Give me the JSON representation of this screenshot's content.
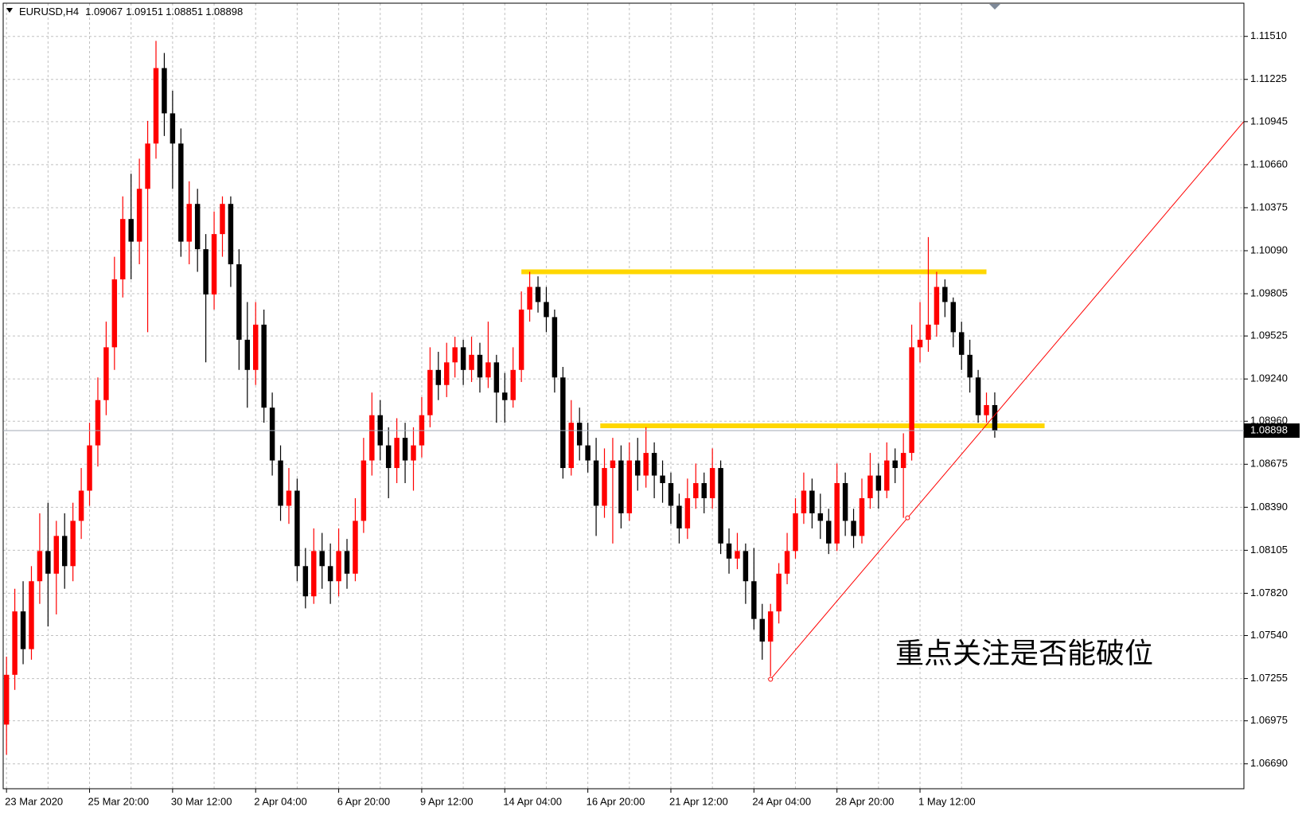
{
  "chart_data": {
    "type": "candlestick",
    "title": "EURUSD,H4",
    "up_color": "#ff0000",
    "down_color": "#000000",
    "grid": true,
    "ohlc": [
      [
        1.0695,
        1.074,
        1.0675,
        1.0728
      ],
      [
        1.0728,
        1.0785,
        1.0718,
        1.077
      ],
      [
        1.077,
        1.079,
        1.0735,
        1.0745
      ],
      [
        1.0745,
        1.08,
        1.0738,
        1.079
      ],
      [
        1.079,
        1.0835,
        1.0775,
        1.081
      ],
      [
        1.081,
        1.0842,
        1.076,
        1.0795
      ],
      [
        1.0795,
        1.083,
        1.0768,
        1.082
      ],
      [
        1.082,
        1.0835,
        1.0785,
        1.08
      ],
      [
        1.08,
        1.0842,
        1.079,
        1.083
      ],
      [
        1.083,
        1.0865,
        1.0818,
        1.085
      ],
      [
        1.085,
        1.0895,
        1.084,
        1.088
      ],
      [
        1.088,
        1.0925,
        1.0866,
        1.091
      ],
      [
        1.091,
        1.0962,
        1.09,
        1.0945
      ],
      [
        1.0945,
        1.1005,
        1.093,
        1.099
      ],
      [
        1.099,
        1.1045,
        1.0978,
        1.103
      ],
      [
        1.103,
        1.106,
        1.099,
        1.1015
      ],
      [
        1.1015,
        1.107,
        1.1,
        1.105
      ],
      [
        1.105,
        1.1095,
        1.0955,
        1.108
      ],
      [
        1.108,
        1.1148,
        1.107,
        1.113
      ],
      [
        1.113,
        1.114,
        1.1085,
        1.11
      ],
      [
        1.11,
        1.1115,
        1.105,
        1.108
      ],
      [
        1.108,
        1.109,
        1.1005,
        1.1015
      ],
      [
        1.1015,
        1.1055,
        1.1,
        1.104
      ],
      [
        1.104,
        1.105,
        1.0995,
        1.101
      ],
      [
        1.101,
        1.102,
        1.0935,
        1.098
      ],
      [
        1.098,
        1.1035,
        1.097,
        1.102
      ],
      [
        1.102,
        1.1045,
        1.1005,
        1.104
      ],
      [
        1.104,
        1.1045,
        1.0985,
        1.1
      ],
      [
        1.1,
        1.101,
        1.093,
        1.095
      ],
      [
        1.095,
        1.0975,
        1.0905,
        1.093
      ],
      [
        1.093,
        1.0975,
        1.092,
        1.096
      ],
      [
        1.096,
        1.097,
        1.0895,
        1.0905
      ],
      [
        1.0905,
        1.0915,
        1.086,
        1.087
      ],
      [
        1.087,
        1.088,
        1.083,
        1.084
      ],
      [
        1.084,
        1.0865,
        1.0828,
        1.085
      ],
      [
        1.085,
        1.0858,
        1.079,
        1.08
      ],
      [
        1.08,
        1.0812,
        1.0772,
        1.078
      ],
      [
        1.078,
        1.0825,
        1.0775,
        1.081
      ],
      [
        1.081,
        1.0822,
        1.0785,
        1.08
      ],
      [
        1.08,
        1.0815,
        1.0775,
        1.079
      ],
      [
        1.079,
        1.0825,
        1.078,
        1.081
      ],
      [
        1.081,
        1.0818,
        1.0785,
        1.0795
      ],
      [
        1.0795,
        1.0845,
        1.079,
        1.083
      ],
      [
        1.083,
        1.0885,
        1.0822,
        1.087
      ],
      [
        1.087,
        1.0915,
        1.086,
        1.09
      ],
      [
        1.09,
        1.091,
        1.087,
        1.088
      ],
      [
        1.088,
        1.0892,
        1.0845,
        1.0865
      ],
      [
        1.0865,
        1.0898,
        1.0855,
        1.0885
      ],
      [
        1.0885,
        1.0895,
        1.0855,
        1.087
      ],
      [
        1.087,
        1.0892,
        1.085,
        1.088
      ],
      [
        1.088,
        1.0912,
        1.0872,
        1.09
      ],
      [
        1.09,
        1.0945,
        1.0892,
        1.093
      ],
      [
        1.093,
        1.0942,
        1.091,
        1.092
      ],
      [
        1.092,
        1.0948,
        1.0912,
        1.0935
      ],
      [
        1.0935,
        1.0952,
        1.0925,
        1.0945
      ],
      [
        1.0945,
        1.095,
        1.092,
        1.093
      ],
      [
        1.093,
        1.0952,
        1.0922,
        1.094
      ],
      [
        1.094,
        1.0948,
        1.0915,
        1.0925
      ],
      [
        1.0925,
        1.0962,
        1.0918,
        1.0935
      ],
      [
        1.0935,
        1.094,
        1.0895,
        1.0915
      ],
      [
        1.0915,
        1.0928,
        1.0895,
        1.091
      ],
      [
        1.091,
        1.0945,
        1.0905,
        1.093
      ],
      [
        1.093,
        1.0982,
        1.0922,
        1.097
      ],
      [
        1.097,
        1.0995,
        1.0962,
        1.0985
      ],
      [
        1.0985,
        1.0992,
        1.0968,
        1.0975
      ],
      [
        1.0975,
        1.0985,
        1.0955,
        1.0965
      ],
      [
        1.0965,
        1.097,
        1.0915,
        1.0925
      ],
      [
        1.0925,
        1.0932,
        1.0858,
        1.0865
      ],
      [
        1.0865,
        1.091,
        1.086,
        1.0895
      ],
      [
        1.0895,
        1.0905,
        1.087,
        1.088
      ],
      [
        1.088,
        1.0895,
        1.0862,
        1.087
      ],
      [
        1.087,
        1.0885,
        1.082,
        1.084
      ],
      [
        1.084,
        1.0878,
        1.0832,
        1.0865
      ],
      [
        1.0865,
        1.0885,
        1.0815,
        1.087
      ],
      [
        1.087,
        1.088,
        1.0825,
        1.0835
      ],
      [
        1.0835,
        1.0882,
        1.083,
        1.087
      ],
      [
        1.087,
        1.0885,
        1.085,
        1.086
      ],
      [
        1.086,
        1.0892,
        1.0852,
        1.0875
      ],
      [
        1.0875,
        1.0882,
        1.0845,
        1.086
      ],
      [
        1.086,
        1.087,
        1.0842,
        1.0855
      ],
      [
        1.0855,
        1.0862,
        1.0828,
        1.084
      ],
      [
        1.084,
        1.0848,
        1.0815,
        1.0825
      ],
      [
        1.0825,
        1.0858,
        1.0818,
        1.0845
      ],
      [
        1.0845,
        1.0868,
        1.0838,
        1.0855
      ],
      [
        1.0855,
        1.0862,
        1.0835,
        1.0845
      ],
      [
        1.0845,
        1.0878,
        1.0838,
        1.0865
      ],
      [
        1.0865,
        1.087,
        1.0808,
        1.0815
      ],
      [
        1.0815,
        1.0825,
        1.0795,
        1.0805
      ],
      [
        1.0805,
        1.0822,
        1.0798,
        1.081
      ],
      [
        1.081,
        1.0815,
        1.0775,
        1.079
      ],
      [
        1.079,
        1.0812,
        1.0758,
        1.0765
      ],
      [
        1.0765,
        1.0775,
        1.0738,
        1.075
      ],
      [
        1.075,
        1.0775,
        1.0727,
        1.077
      ],
      [
        1.077,
        1.0802,
        1.0762,
        1.0795
      ],
      [
        1.0795,
        1.0822,
        1.0788,
        1.081
      ],
      [
        1.081,
        1.0845,
        1.0805,
        1.0835
      ],
      [
        1.0835,
        1.0862,
        1.0828,
        1.085
      ],
      [
        1.085,
        1.0858,
        1.0825,
        1.0835
      ],
      [
        1.0835,
        1.0848,
        1.0818,
        1.083
      ],
      [
        1.083,
        1.0838,
        1.0808,
        1.0815
      ],
      [
        1.0815,
        1.0868,
        1.081,
        1.0855
      ],
      [
        1.0855,
        1.0862,
        1.082,
        1.083
      ],
      [
        1.083,
        1.0838,
        1.0812,
        1.082
      ],
      [
        1.082,
        1.0858,
        1.0815,
        1.0845
      ],
      [
        1.0845,
        1.0875,
        1.0838,
        1.086
      ],
      [
        1.086,
        1.0868,
        1.0838,
        1.085
      ],
      [
        1.085,
        1.0882,
        1.0845,
        1.087
      ],
      [
        1.087,
        1.0878,
        1.0855,
        1.0865
      ],
      [
        1.0865,
        1.0888,
        1.0832,
        1.0875
      ],
      [
        1.0875,
        1.096,
        1.087,
        1.0945
      ],
      [
        1.0945,
        1.0975,
        1.0935,
        1.095
      ],
      [
        1.095,
        1.1018,
        1.0942,
        1.096
      ],
      [
        1.096,
        1.0995,
        1.0952,
        1.0985
      ],
      [
        1.0985,
        1.099,
        1.0965,
        1.0975
      ],
      [
        1.0975,
        1.0978,
        1.0945,
        1.0955
      ],
      [
        1.0955,
        1.0962,
        1.093,
        1.094
      ],
      [
        1.094,
        1.095,
        1.0915,
        1.0925
      ],
      [
        1.0925,
        1.093,
        1.0895,
        1.09
      ],
      [
        1.09,
        1.0915,
        1.0895,
        1.09067
      ],
      [
        1.09067,
        1.09151,
        1.08851,
        1.08898
      ]
    ],
    "xlim": [
      -0.4,
      149
    ],
    "xticks": [
      {
        "value": 0,
        "label": "23 Mar 2020"
      },
      {
        "value": 10,
        "label": "25 Mar 20:00"
      },
      {
        "value": 20,
        "label": "30 Mar 12:00"
      },
      {
        "value": 30,
        "label": "2 Apr 04:00"
      },
      {
        "value": 40,
        "label": "6 Apr 20:00"
      },
      {
        "value": 50,
        "label": "9 Apr 12:00"
      },
      {
        "value": 60,
        "label": "14 Apr 04:00"
      },
      {
        "value": 70,
        "label": "16 Apr 20:00"
      },
      {
        "value": 80,
        "label": "21 Apr 12:00"
      },
      {
        "value": 90,
        "label": "24 Apr 04:00"
      },
      {
        "value": 100,
        "label": "28 Apr 20:00"
      },
      {
        "value": 110,
        "label": "1 May 12:00"
      }
    ],
    "ylim": [
      1.06525,
      1.1173
    ],
    "yticks": [
      {
        "value": 1.1151,
        "label": "1.11510"
      },
      1.11225,
      1.10945,
      {
        "value": 1.1066,
        "label": "1.10660"
      },
      1.10375,
      {
        "value": 1.1009,
        "label": "1.10090"
      },
      1.09805,
      1.09525,
      {
        "value": 1.0924,
        "label": "1.09240"
      },
      {
        "value": 1.0896,
        "label": "1.08960"
      },
      1.08675,
      {
        "value": 1.0839,
        "label": "1.08390"
      },
      1.08105,
      {
        "value": 1.0782,
        "label": "1.07820"
      },
      {
        "value": 1.0754,
        "label": "1.07540"
      },
      1.07255,
      1.06975,
      {
        "value": 1.0669,
        "label": "1.06690"
      }
    ],
    "levels": [
      {
        "value": 1.0995,
        "from": 62,
        "to": 118,
        "color": "#ffd700"
      },
      {
        "value": 1.0893,
        "from": 71.5,
        "to": 125,
        "color": "#ffd700"
      }
    ],
    "trendline": {
      "x": [
        92,
        108.5
      ],
      "y": [
        1.0725,
        1.0832
      ],
      "color": "#ff0000"
    },
    "annotation": "重点关注是否能破位"
  }
}
